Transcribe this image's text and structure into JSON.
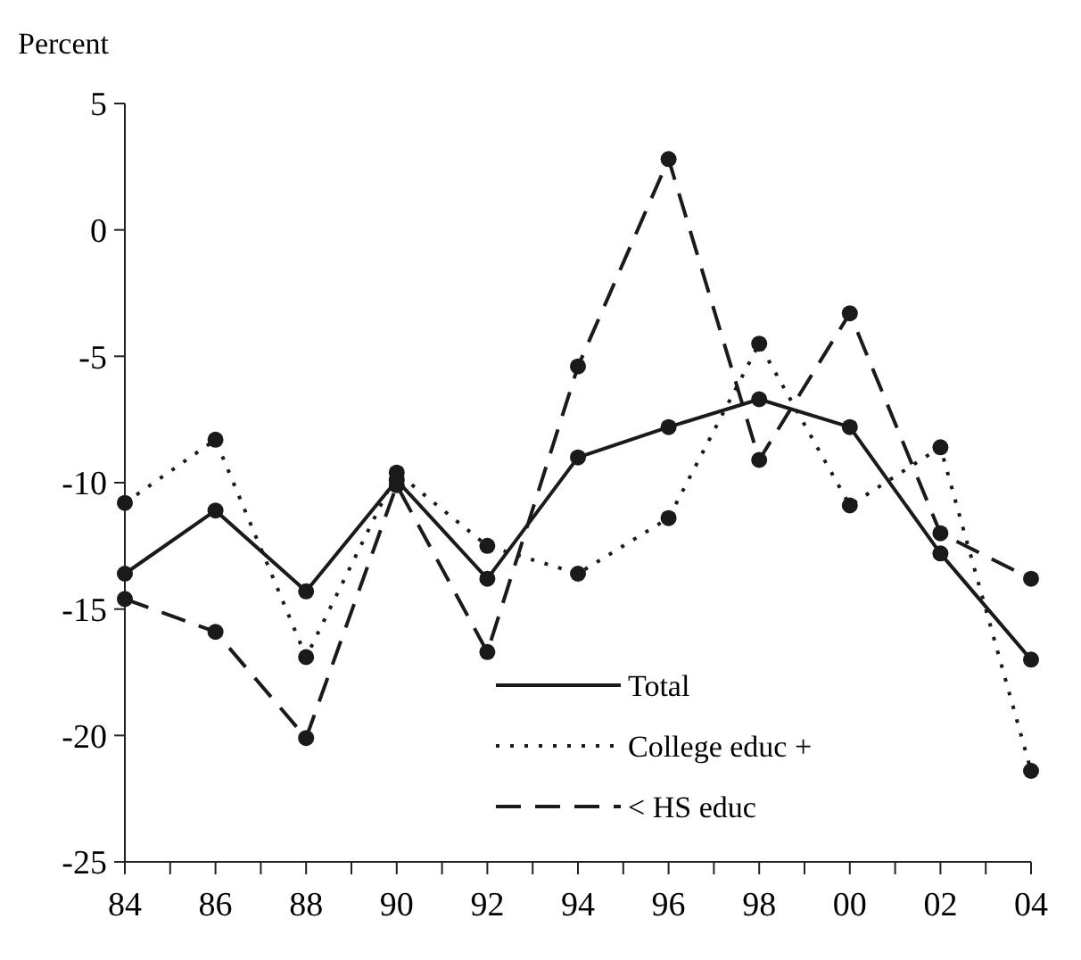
{
  "chart_data": {
    "type": "line",
    "ylabel": "Percent",
    "x": [
      1984,
      1986,
      1988,
      1990,
      1992,
      1994,
      1996,
      1998,
      2000,
      2002,
      2004
    ],
    "xlim": [
      1984,
      2004
    ],
    "xticks": [
      {
        "value": 1984,
        "label": "84"
      },
      {
        "value": 1985,
        "label": null
      },
      {
        "value": 1986,
        "label": "86"
      },
      {
        "value": 1987,
        "label": null
      },
      {
        "value": 1988,
        "label": "88"
      },
      {
        "value": 1989,
        "label": null
      },
      {
        "value": 1990,
        "label": "90"
      },
      {
        "value": 1991,
        "label": null
      },
      {
        "value": 1992,
        "label": "92"
      },
      {
        "value": 1993,
        "label": null
      },
      {
        "value": 1994,
        "label": "94"
      },
      {
        "value": 1995,
        "label": null
      },
      {
        "value": 1996,
        "label": "96"
      },
      {
        "value": 1997,
        "label": null
      },
      {
        "value": 1998,
        "label": "98"
      },
      {
        "value": 1999,
        "label": null
      },
      {
        "value": 2000,
        "label": "00"
      },
      {
        "value": 2001,
        "label": null
      },
      {
        "value": 2002,
        "label": "02"
      },
      {
        "value": 2003,
        "label": null
      },
      {
        "value": 2004,
        "label": "04"
      }
    ],
    "ylim": [
      -25,
      5
    ],
    "yticks": [
      -25,
      -20,
      -15,
      -10,
      -5,
      0,
      5
    ],
    "grid": false,
    "legend": "bottom right",
    "marker": "circle",
    "series": [
      {
        "name": "Total",
        "color": "#1a1a1a",
        "line_style": "solid",
        "values": [
          -13.6,
          -11.1,
          -14.3,
          -9.9,
          -13.8,
          -9.0,
          -7.8,
          -6.7,
          -7.8,
          -12.8,
          -17.0
        ]
      },
      {
        "name": "College educ +",
        "color": "#1a1a1a",
        "line_style": "dotted",
        "values": [
          -10.8,
          -8.3,
          -16.9,
          -9.6,
          -12.5,
          -13.6,
          -11.4,
          -4.5,
          -10.9,
          -8.6,
          -21.4
        ]
      },
      {
        "name": "< HS educ",
        "color": "#1a1a1a",
        "line_style": "dashed",
        "values": [
          -14.6,
          -15.9,
          -20.1,
          -10.1,
          -16.7,
          -5.4,
          2.8,
          -9.1,
          -3.3,
          -12.0,
          -13.8
        ]
      }
    ]
  }
}
